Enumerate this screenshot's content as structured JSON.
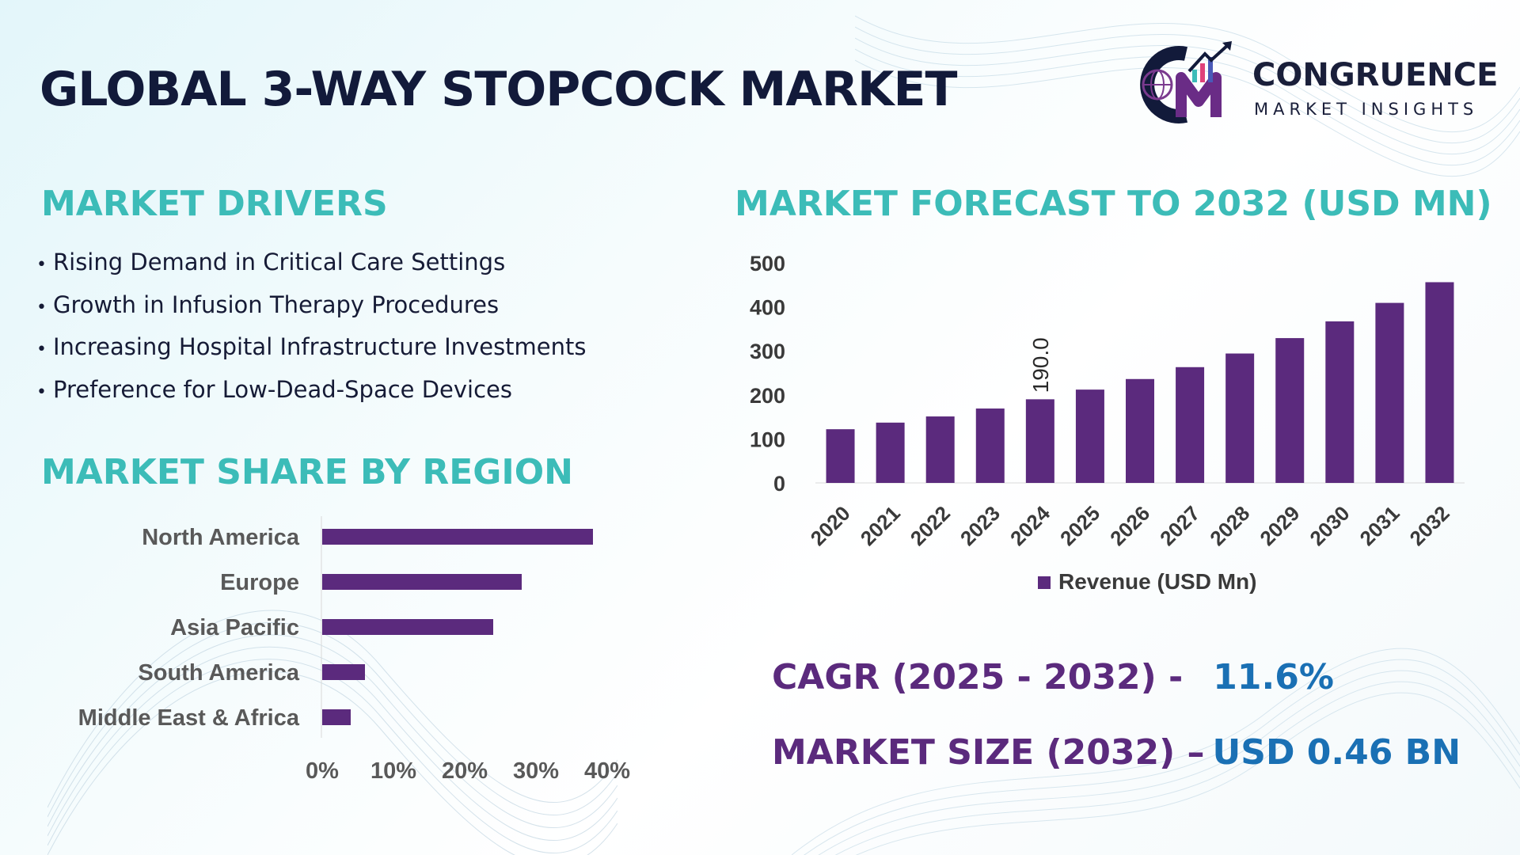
{
  "title": "GLOBAL 3-WAY STOPCOCK MARKET",
  "logo": {
    "mark_icon": "cm-globe-chart-icon",
    "name": "CONGRUENCE",
    "subtitle": "MARKET INSIGHTS"
  },
  "drivers": {
    "heading": "MARKET DRIVERS",
    "bullet": "•",
    "items": [
      "Rising Demand in Critical Care Settings",
      "Growth in Infusion Therapy Procedures",
      "Increasing Hospital Infrastructure Investments",
      "Preference for Low-Dead-Space Devices"
    ]
  },
  "forecast_heading": "MARKET FORECAST TO 2032 (USD MN)",
  "region_heading": "MARKET SHARE BY REGION",
  "stats": {
    "cagr_label": "CAGR (2025 - 2032) -",
    "cagr_value": "11.6%",
    "size_label": "MARKET SIZE (2032) –",
    "size_value": "USD 0.46 BN"
  },
  "colors": {
    "bar": "#5b2a7d",
    "heading": "#3cbcb8",
    "title": "#121a3a",
    "stat_label": "#5b2a7d",
    "stat_value": "#1a70b4"
  },
  "chart_data": [
    {
      "type": "bar",
      "categories": [
        "2020",
        "2021",
        "2022",
        "2023",
        "2024",
        "2025",
        "2026",
        "2027",
        "2028",
        "2029",
        "2030",
        "2031",
        "2032"
      ],
      "series": [
        {
          "name": "Revenue (USD Mn)",
          "values": [
            122,
            137,
            151,
            169,
            190,
            212,
            236,
            263,
            294,
            329,
            367,
            409,
            456
          ]
        }
      ],
      "data_labels": [
        {
          "category": "2024",
          "text": "190.0"
        }
      ],
      "ylim": [
        0,
        500
      ],
      "yticks": [
        "0",
        "100",
        "200",
        "300",
        "400",
        "500"
      ],
      "legend": "bottom",
      "grid": false
    },
    {
      "type": "bar",
      "orientation": "horizontal",
      "categories": [
        "North America",
        "Europe",
        "Asia Pacific",
        "South America",
        "Middle East & Africa"
      ],
      "values": [
        38,
        28,
        24,
        6,
        4
      ],
      "xlim": [
        0,
        40
      ],
      "xticks": [
        "0%",
        "10%",
        "20%",
        "30%",
        "40%"
      ],
      "grid": false
    }
  ]
}
